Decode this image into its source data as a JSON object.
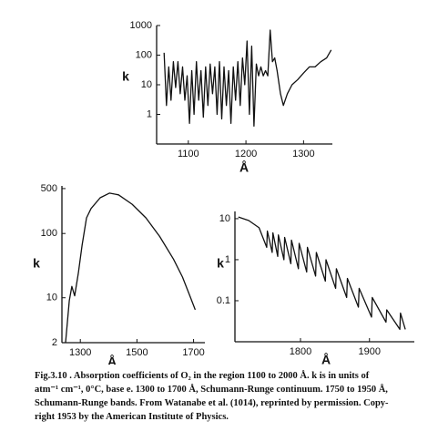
{
  "chart_data": [
    {
      "type": "line",
      "xlabel": "Å",
      "ylabel": "k",
      "ylog": true,
      "color": "#111111",
      "xlim": [
        1045,
        1350
      ],
      "xticks": [
        1100,
        1200,
        1300
      ],
      "ylim": [
        0.1,
        1000
      ],
      "yticks": [
        1000,
        100,
        10,
        1
      ],
      "x": [
        1058,
        1062,
        1066,
        1070,
        1074,
        1078,
        1082,
        1086,
        1090,
        1094,
        1098,
        1102,
        1106,
        1110,
        1114,
        1118,
        1122,
        1126,
        1130,
        1134,
        1138,
        1142,
        1146,
        1150,
        1154,
        1158,
        1162,
        1166,
        1170,
        1174,
        1178,
        1182,
        1186,
        1190,
        1194,
        1198,
        1202,
        1206,
        1210,
        1214,
        1218,
        1222,
        1226,
        1230,
        1234,
        1238,
        1242,
        1246,
        1250,
        1254,
        1260,
        1265,
        1272,
        1280,
        1290,
        1300,
        1310,
        1320,
        1330,
        1340,
        1348
      ],
      "values": [
        120,
        2,
        40,
        3,
        60,
        8,
        60,
        5,
        40,
        3,
        20,
        0.5,
        30,
        1,
        60,
        3,
        30,
        0.8,
        40,
        2,
        50,
        5,
        40,
        1,
        60,
        0.7,
        40,
        2,
        30,
        0.5,
        40,
        3,
        60,
        2,
        80,
        10,
        300,
        1,
        200,
        0.4,
        50,
        20,
        40,
        20,
        30,
        20,
        700,
        60,
        80,
        30,
        5,
        2,
        5,
        10,
        15,
        25,
        40,
        40,
        60,
        80,
        150
      ]
    },
    {
      "type": "line",
      "xlabel": "Å",
      "ylabel": "k",
      "ylog": true,
      "color": "#111111",
      "xlim": [
        1235,
        1740
      ],
      "xticks": [
        1300,
        1500,
        1700
      ],
      "ylim": [
        2,
        550
      ],
      "yticks": [
        500,
        100,
        10,
        2
      ],
      "x": [
        1248,
        1261,
        1270,
        1280,
        1293,
        1306,
        1322,
        1338,
        1370,
        1403,
        1435,
        1483,
        1532,
        1580,
        1629,
        1661,
        1687,
        1706
      ],
      "values": [
        2,
        9,
        15,
        10.7,
        24,
        65,
        175,
        245,
        360,
        425,
        400,
        285,
        175,
        90,
        40,
        21,
        10.7,
        6.5
      ]
    },
    {
      "type": "line",
      "xlabel": "Å",
      "ylabel": "k",
      "ylog": true,
      "color": "#111111",
      "xlim": [
        1705,
        1965
      ],
      "xticks": [
        1800,
        1900
      ],
      "ylim": [
        0.01,
        15
      ],
      "yticks": [
        10,
        1,
        0.1
      ],
      "x": [
        1710,
        1725,
        1740,
        1751,
        1752,
        1759,
        1760,
        1767,
        1768,
        1776,
        1777,
        1786,
        1787,
        1797,
        1798,
        1809,
        1810,
        1822,
        1823,
        1836,
        1837,
        1851,
        1852,
        1867,
        1868,
        1884,
        1885,
        1903,
        1904,
        1924,
        1925,
        1944,
        1945,
        1952
      ],
      "values": [
        11,
        9,
        6,
        2,
        5,
        1.5,
        4.5,
        1.2,
        4,
        1,
        3.5,
        0.8,
        3,
        0.6,
        2.5,
        0.5,
        2,
        0.4,
        1.5,
        0.3,
        1,
        0.2,
        0.6,
        0.12,
        0.35,
        0.07,
        0.2,
        0.04,
        0.12,
        0.03,
        0.06,
        0.02,
        0.05,
        0.02
      ]
    }
  ],
  "caption": [
    "Fig.3.10 . Absorption coefficients of O₂ in the region 1100 to 2000 Å. k is in units of",
    "atm⁻¹ cm⁻¹, 0°C, base e. 1300 to 1700 Å, Schumann-Runge continuum. 1750 to 1950 Å,",
    "Schumann-Runge bands. From Watanabe et al. (1014), reprinted by permission. Copy-",
    "right 1953 by the American Institute of Physics."
  ]
}
